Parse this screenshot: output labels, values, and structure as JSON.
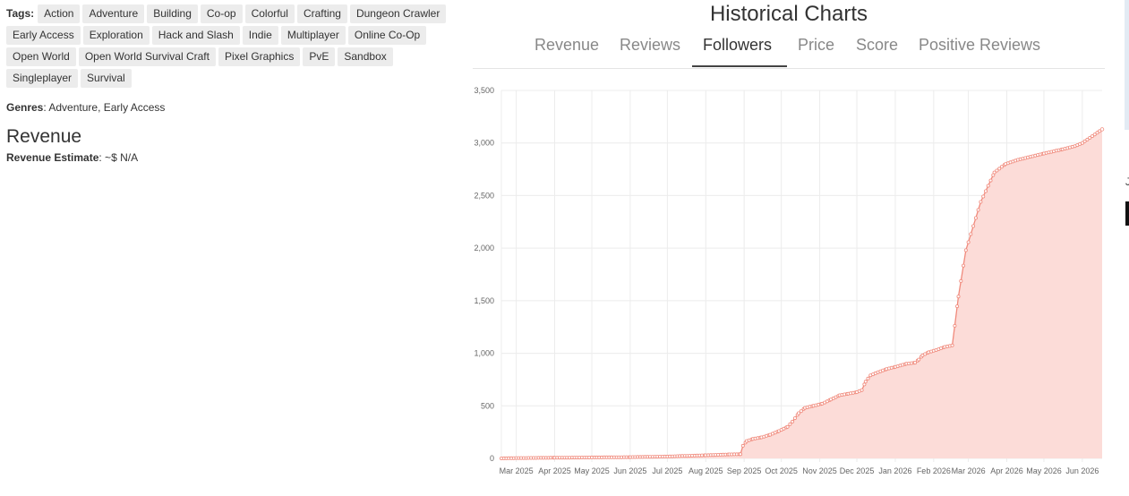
{
  "tags_label": "Tags:",
  "tags": [
    "Action",
    "Adventure",
    "Building",
    "Co-op",
    "Colorful",
    "Crafting",
    "Dungeon Crawler",
    "Early Access",
    "Exploration",
    "Hack and Slash",
    "Indie",
    "Multiplayer",
    "Online Co-Op",
    "Open World",
    "Open World Survival Craft",
    "Pixel Graphics",
    "PvE",
    "Sandbox",
    "Singleplayer",
    "Survival"
  ],
  "genres_label": "Genres",
  "genres_value": ": Adventure, Early Access",
  "revenue_heading": "Revenue",
  "revenue_estimate_label": "Revenue Estimate",
  "revenue_estimate_value": ": ~$ N/A",
  "chart_heading": "Historical Charts",
  "tabs": [
    "Revenue",
    "Reviews",
    "Followers",
    "Price",
    "Score",
    "Positive Reviews"
  ],
  "active_tab": "Followers",
  "edge_glyph": "J",
  "chart_data": {
    "type": "area",
    "title": "",
    "xlabel": "",
    "ylabel": "",
    "ylim": [
      0,
      3500
    ],
    "yticks": [
      0,
      500,
      1000,
      1500,
      2000,
      2500,
      3000,
      3500
    ],
    "ytick_labels": [
      "0",
      "500",
      "1,000",
      "1,500",
      "2,000",
      "2,500",
      "3,000",
      "3,500"
    ],
    "xticks": [
      "2025-03-01",
      "2025-04-01",
      "2025-05-01",
      "2025-06-01",
      "2025-07-01",
      "2025-08-01",
      "2025-09-01",
      "2025-10-01",
      "2025-11-01",
      "2025-12-01",
      "2026-01-01",
      "2026-02-01",
      "2026-03-01",
      "2026-04-01",
      "2026-05-01",
      "2026-06-01"
    ],
    "xtick_labels": [
      "Mar 2025",
      "Apr 2025",
      "May 2025",
      "Jun 2025",
      "Jul 2025",
      "Aug 2025",
      "Sep 2025",
      "Oct 2025",
      "Nov 2025",
      "Dec 2025",
      "Jan 2026",
      "Feb 2026",
      "Mar 2026",
      "Apr 2026",
      "May 2026",
      "Jun 2026"
    ],
    "xlim": [
      "2025-02-17",
      "2026-06-17"
    ],
    "grid": true,
    "line_color": "#f08a7c",
    "fill_color": "#fcdcd8",
    "series": [
      {
        "points": [
          [
            "2025-02-17",
            0
          ],
          [
            "2025-03-01",
            3
          ],
          [
            "2025-04-01",
            6
          ],
          [
            "2025-05-01",
            9
          ],
          [
            "2025-06-01",
            12
          ],
          [
            "2025-07-01",
            18
          ],
          [
            "2025-08-01",
            30
          ],
          [
            "2025-08-20",
            38
          ],
          [
            "2025-08-29",
            40
          ],
          [
            "2025-08-31",
            120
          ],
          [
            "2025-09-03",
            165
          ],
          [
            "2025-09-08",
            185
          ],
          [
            "2025-09-15",
            200
          ],
          [
            "2025-09-22",
            225
          ],
          [
            "2025-09-29",
            260
          ],
          [
            "2025-10-06",
            300
          ],
          [
            "2025-10-10",
            350
          ],
          [
            "2025-10-15",
            430
          ],
          [
            "2025-10-20",
            480
          ],
          [
            "2025-10-27",
            500
          ],
          [
            "2025-11-03",
            520
          ],
          [
            "2025-11-10",
            560
          ],
          [
            "2025-11-17",
            600
          ],
          [
            "2025-11-24",
            615
          ],
          [
            "2025-12-01",
            630
          ],
          [
            "2025-12-05",
            650
          ],
          [
            "2025-12-08",
            730
          ],
          [
            "2025-12-12",
            790
          ],
          [
            "2025-12-18",
            820
          ],
          [
            "2025-12-25",
            850
          ],
          [
            "2026-01-01",
            870
          ],
          [
            "2026-01-10",
            900
          ],
          [
            "2026-01-17",
            910
          ],
          [
            "2026-01-20",
            940
          ],
          [
            "2026-01-23",
            980
          ],
          [
            "2026-01-28",
            1010
          ],
          [
            "2026-02-03",
            1030
          ],
          [
            "2026-02-10",
            1060
          ],
          [
            "2026-02-16",
            1075
          ],
          [
            "2026-02-21",
            1540
          ],
          [
            "2026-02-27",
            1980
          ],
          [
            "2026-03-11",
            2440
          ],
          [
            "2026-03-22",
            2720
          ],
          [
            "2026-03-31",
            2800
          ],
          [
            "2026-04-10",
            2840
          ],
          [
            "2026-05-01",
            2900
          ],
          [
            "2026-05-16",
            2940
          ],
          [
            "2026-05-26",
            2970
          ],
          [
            "2026-06-01",
            3000
          ],
          [
            "2026-06-17",
            3130
          ]
        ]
      }
    ]
  }
}
